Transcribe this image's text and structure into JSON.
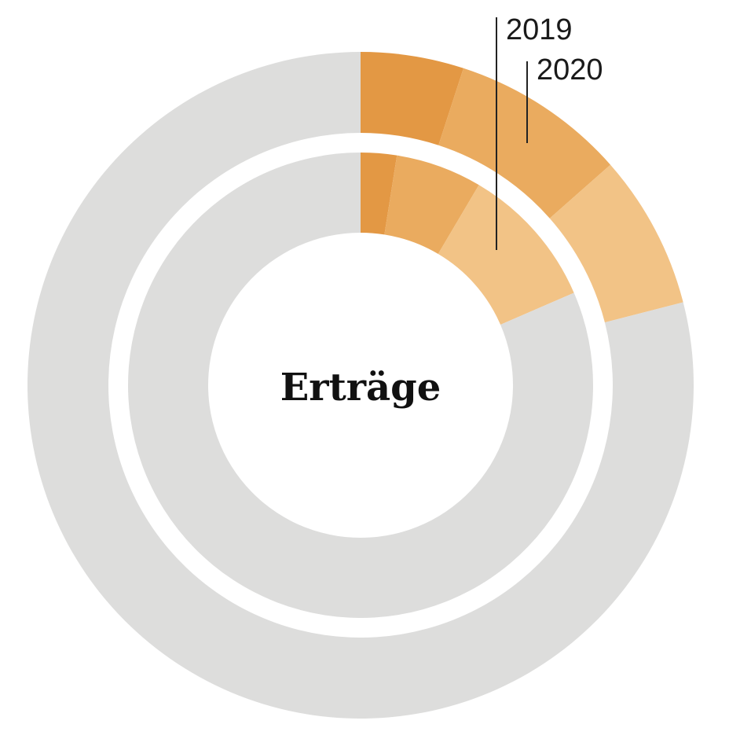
{
  "chart_data": {
    "type": "pie",
    "title": "Erträge",
    "rings": [
      {
        "name": "2019",
        "segments": [
          {
            "value": 2.5,
            "color": "#e39844"
          },
          {
            "value": 6.0,
            "color": "#eaab5f"
          },
          {
            "value": 10.0,
            "color": "#f2c386"
          },
          {
            "value": 81.5,
            "color": "#dddddc"
          }
        ]
      },
      {
        "name": "2020",
        "segments": [
          {
            "value": 5.0,
            "color": "#e39844"
          },
          {
            "value": 8.5,
            "color": "#eaab5f"
          },
          {
            "value": 7.5,
            "color": "#f2c386"
          },
          {
            "value": 79.0,
            "color": "#dddddc"
          }
        ]
      }
    ]
  }
}
